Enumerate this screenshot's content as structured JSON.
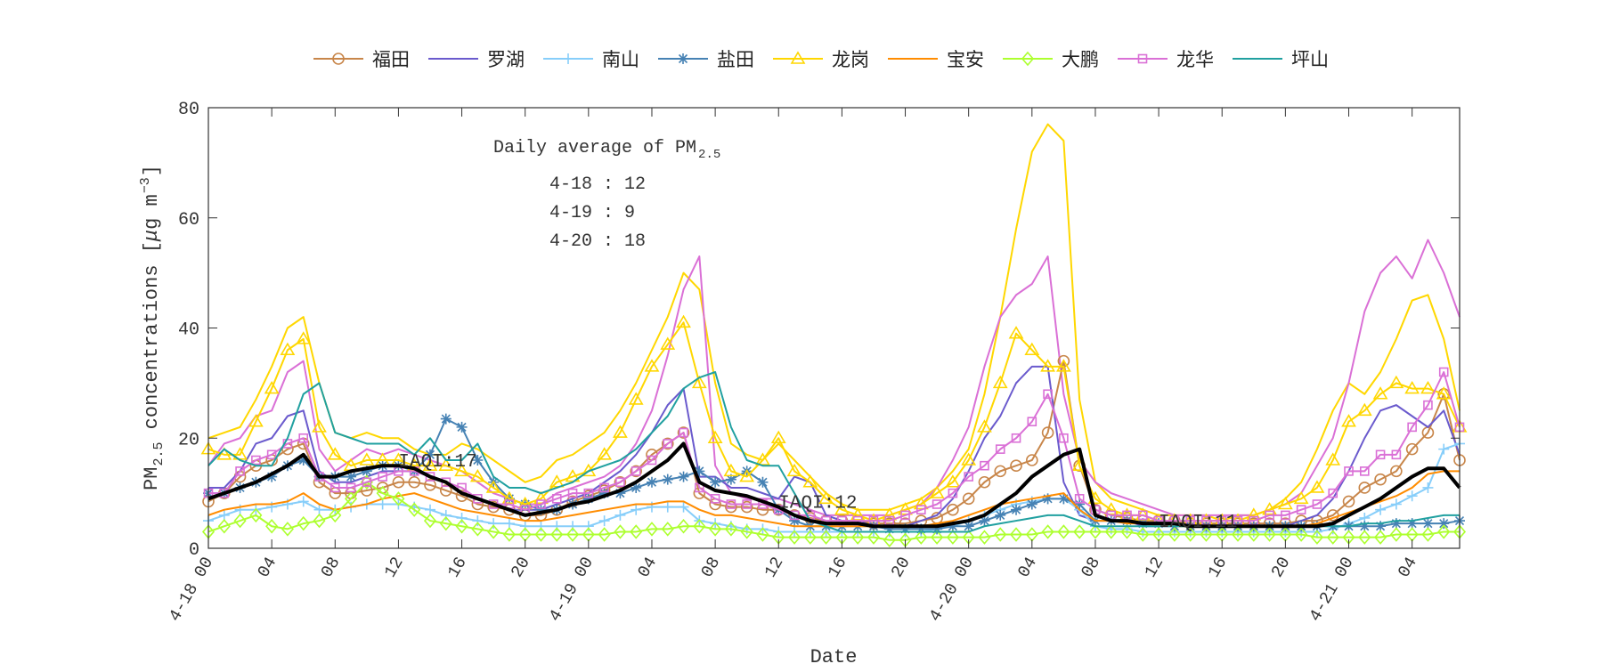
{
  "chart_data": {
    "type": "line",
    "xlabel": "Date",
    "ylabel": "PM2.5 concentrations [μg m−3]",
    "ylabel_parts": {
      "pre": "PM",
      "sub": "2.5",
      "mid": " concentrations [",
      "mu": "μ",
      "unit": "g m",
      "sup": "−3",
      "post": "]"
    },
    "ylim": [
      0,
      80
    ],
    "yticks": [
      0,
      20,
      40,
      60,
      80
    ],
    "xlim": [
      0,
      79
    ],
    "x_unit": "hours from 4-18 00",
    "xtick_hours": [
      0,
      4,
      8,
      12,
      16,
      20,
      24,
      28,
      32,
      36,
      40,
      44,
      48,
      52,
      56,
      60,
      64,
      68,
      72,
      76
    ],
    "xtick_labels": [
      "4-18 00",
      "04",
      "08",
      "12",
      "16",
      "20",
      "4-19 00",
      "04",
      "08",
      "12",
      "16",
      "20",
      "4-20 00",
      "04",
      "08",
      "12",
      "16",
      "20",
      "4-21 00",
      "04"
    ],
    "grid": false,
    "legend_placement": "top (outside, horizontal)",
    "box_title": {
      "pre": "Daily average of PM",
      "sub": "2.5"
    },
    "daily_averages": [
      "4-18 : 12",
      "4-19 : 9",
      "4-20 : 18"
    ],
    "annotations": [
      {
        "text": "IAQI:17",
        "hour": 12,
        "value": 16
      },
      {
        "text": "IAQI:12",
        "hour": 36,
        "value": 8.5
      },
      {
        "text": "IAQI:11",
        "hour": 60,
        "value": 5
      }
    ],
    "series": [
      {
        "name": "福田",
        "color": "#c8864a",
        "marker": "circle",
        "legend": true,
        "values": [
          8.5,
          10,
          13,
          15,
          16,
          18,
          19,
          12,
          10,
          10,
          10.5,
          11,
          12,
          12,
          11.5,
          10.5,
          9.5,
          8,
          7.5,
          7,
          6,
          6,
          7,
          8.5,
          9.5,
          10.5,
          12,
          14,
          17,
          19,
          21,
          10,
          8,
          7.5,
          7.5,
          7,
          7,
          6,
          5.5,
          5,
          5,
          5,
          4.5,
          4.5,
          4.5,
          5,
          5.5,
          7,
          9,
          12,
          14,
          15,
          16,
          21,
          34,
          15,
          7,
          6,
          5.5,
          5,
          5,
          5,
          4.5,
          4.5,
          4.5,
          4.5,
          4.5,
          4.5,
          4.5,
          5,
          5,
          6,
          8.5,
          11,
          12.5,
          14,
          18,
          21,
          28,
          16
        ]
      },
      {
        "name": "罗湖",
        "color": "#6a5acd",
        "marker": "none",
        "legend": true,
        "values": [
          11,
          11,
          14,
          19,
          20,
          24,
          25,
          14,
          12,
          12,
          13,
          14,
          14,
          14,
          13,
          12,
          10,
          9,
          8,
          7,
          7,
          7,
          8,
          9,
          10,
          12,
          14,
          17,
          21,
          26,
          29,
          13,
          13,
          11,
          11,
          10,
          9,
          13,
          12,
          6,
          5,
          5,
          4,
          4,
          4,
          5,
          6,
          9,
          14,
          20,
          24,
          30,
          33,
          33,
          12,
          6,
          5,
          5,
          5,
          4,
          4,
          4,
          4,
          4,
          4,
          4,
          4,
          4,
          4,
          5,
          6,
          9,
          14,
          20,
          25,
          26,
          24,
          22,
          25,
          17
        ]
      },
      {
        "name": "南山",
        "color": "#87cefa",
        "marker": "plus",
        "legend": true,
        "values": [
          5,
          6,
          7,
          7,
          7.5,
          8,
          8.5,
          7,
          7,
          7.5,
          8,
          8,
          8,
          7.5,
          7,
          6,
          5.5,
          5,
          4.5,
          4.5,
          4,
          4,
          4,
          4,
          4,
          5,
          6,
          7,
          7.5,
          7.5,
          7.5,
          5,
          4.5,
          4,
          3.5,
          3.5,
          3,
          3,
          3,
          3,
          3,
          3,
          3,
          3,
          3,
          3,
          3.5,
          4,
          5,
          6,
          7,
          8,
          8.5,
          9,
          9,
          7,
          4,
          3.5,
          3.5,
          3,
          3,
          3,
          3,
          3,
          3,
          3,
          3,
          3,
          3,
          3,
          3,
          3.5,
          4.5,
          5.5,
          7,
          8,
          9.5,
          11,
          18,
          19
        ]
      },
      {
        "name": "盐田",
        "color": "#4682b4",
        "marker": "asterisk",
        "legend": true,
        "values": [
          10,
          10,
          11,
          12,
          13,
          15,
          16,
          13,
          13,
          13,
          14,
          15,
          15,
          14,
          17,
          23.5,
          22,
          16,
          12,
          9,
          8,
          7,
          7,
          8,
          9,
          10,
          10,
          11,
          12,
          12.5,
          13,
          14,
          12,
          12.5,
          14,
          12,
          7,
          5,
          4,
          4,
          4,
          4,
          4,
          3.5,
          3.5,
          3.5,
          3.5,
          4,
          4,
          5,
          6,
          7,
          8,
          9,
          9,
          8,
          5,
          5,
          5,
          4.5,
          4.5,
          4,
          4,
          4,
          4,
          4,
          4,
          4,
          4,
          4,
          4,
          4,
          4,
          4,
          4,
          4.5,
          4.5,
          4.5,
          4.5,
          5
        ]
      },
      {
        "name": "龙岗",
        "color": "#ffd700",
        "marker": "triangle",
        "legend": true,
        "values": [
          18,
          17,
          17,
          23,
          29,
          36,
          38,
          22,
          17,
          15,
          16,
          16,
          16,
          15,
          15,
          15,
          14,
          13,
          11,
          9,
          8,
          9,
          12,
          13,
          14,
          17,
          21,
          27,
          33,
          37,
          41,
          30,
          20,
          14,
          13,
          16,
          20,
          14,
          12,
          9,
          7,
          6,
          5,
          6,
          7,
          8,
          10,
          12,
          16,
          22,
          30,
          39,
          36,
          33,
          33,
          15,
          9,
          7,
          6,
          6,
          5,
          5,
          5,
          5,
          5,
          5,
          6,
          7,
          8,
          9,
          11,
          16,
          23,
          25,
          28,
          30,
          29,
          29,
          28,
          22
        ]
      },
      {
        "name": "宝安",
        "color": "#ff8c00",
        "marker": "none",
        "legend": true,
        "values": [
          6,
          7,
          7.5,
          8,
          8,
          8.5,
          10,
          8,
          7,
          7.5,
          8,
          9,
          9.5,
          10,
          9,
          8,
          7,
          6.5,
          6,
          5.5,
          5,
          5,
          5.5,
          6,
          6.5,
          7,
          7.5,
          8,
          8,
          8.5,
          8.5,
          7,
          6,
          6,
          5.5,
          5,
          4.5,
          4,
          4,
          4,
          4,
          4,
          4,
          4,
          4,
          4,
          4.5,
          5,
          6,
          7,
          8,
          8.5,
          9,
          9.5,
          10,
          7,
          5,
          5,
          4.5,
          4.5,
          4.5,
          4,
          4,
          4,
          4,
          4,
          4,
          4,
          4,
          4,
          4.5,
          5.5,
          6.5,
          7.5,
          8.5,
          9.5,
          11,
          13.5,
          14,
          14
        ]
      },
      {
        "name": "大鹏",
        "color": "#adff2f",
        "marker": "diamond",
        "legend": true,
        "values": [
          3,
          4,
          5,
          6,
          4,
          3.5,
          4.5,
          5,
          6,
          9,
          12,
          10,
          9,
          7,
          5,
          4.5,
          4,
          3.5,
          3,
          2.5,
          2.5,
          2.5,
          2.5,
          2.5,
          2.5,
          2.5,
          3,
          3,
          3.5,
          3.5,
          4,
          4,
          3.5,
          3.5,
          3,
          2.5,
          2,
          2,
          2,
          2,
          2,
          2,
          2,
          1.5,
          1.5,
          2,
          2,
          2,
          2,
          2,
          2.5,
          2.5,
          2.5,
          3,
          3,
          3,
          3,
          3,
          3,
          2.5,
          2.5,
          2.5,
          2.5,
          2.5,
          2.5,
          2.5,
          2.5,
          2.5,
          2.5,
          2.5,
          2,
          2,
          2,
          2,
          2,
          2.5,
          2.5,
          2.5,
          3,
          3
        ]
      },
      {
        "name": "龙华",
        "color": "#da70d6",
        "marker": "square",
        "legend": true,
        "values": [
          10,
          10,
          14,
          16,
          17,
          19,
          20,
          13,
          11,
          11,
          12,
          13,
          14,
          14,
          13,
          12,
          11,
          9,
          8,
          8,
          7,
          8,
          9,
          10,
          10,
          11,
          12,
          14,
          16,
          19,
          21,
          11,
          9,
          8,
          8,
          8,
          7,
          6,
          6,
          5,
          5,
          5,
          5,
          5,
          6,
          7,
          8,
          10,
          13,
          15,
          18,
          20,
          23,
          28,
          20,
          9,
          7,
          6,
          6,
          6,
          5,
          5,
          5,
          5,
          5,
          5,
          5,
          6,
          6,
          7,
          8,
          10,
          14,
          14,
          17,
          17,
          22,
          26,
          32,
          22
        ]
      },
      {
        "name": "坪山",
        "color": "#20a0a0",
        "marker": "none",
        "legend": true,
        "values": [
          15,
          18,
          16,
          15,
          15,
          20,
          28,
          30,
          21,
          20,
          19,
          19,
          19,
          17,
          20,
          16,
          16,
          19,
          13,
          11,
          11,
          10,
          11,
          12,
          14,
          15,
          16,
          18,
          21,
          24,
          29,
          31,
          32,
          22,
          16,
          15,
          15,
          10,
          5,
          4,
          3,
          3,
          3,
          3,
          3,
          3,
          3,
          3,
          3,
          4,
          4.5,
          5,
          5.5,
          6,
          6,
          5,
          4,
          4,
          4,
          4,
          4,
          4,
          4,
          4,
          4,
          4,
          4,
          4,
          4,
          4,
          4,
          4,
          4,
          4.5,
          4.5,
          5,
          5,
          5.5,
          6,
          6
        ]
      },
      {
        "color": "#ffd700",
        "marker": "none",
        "legend": false,
        "values": [
          20,
          21,
          22,
          27,
          33,
          40,
          42,
          30,
          21,
          20,
          21,
          20,
          20,
          18,
          17,
          17,
          19,
          18,
          16,
          14,
          12,
          13,
          16,
          17,
          19,
          21,
          25,
          30,
          36,
          42,
          50,
          47,
          30,
          19,
          17,
          16,
          19,
          16,
          13,
          10,
          8,
          7,
          7,
          7,
          8,
          9,
          11,
          14,
          18,
          28,
          42,
          58,
          72,
          77,
          74,
          27,
          12,
          9,
          8,
          7,
          6,
          6,
          6,
          6,
          5,
          6,
          6,
          7,
          9,
          12,
          18,
          25,
          30,
          28,
          32,
          38,
          45,
          46,
          38,
          25
        ]
      },
      {
        "color": "#da70d6",
        "marker": "none",
        "legend": false,
        "values": [
          15,
          19,
          20,
          24,
          25,
          32,
          34,
          18,
          14,
          16,
          18,
          17,
          18,
          17,
          16,
          15,
          14,
          12,
          10,
          9,
          8,
          8,
          10,
          11,
          12,
          13,
          15,
          19,
          25,
          35,
          47,
          53,
          15,
          10,
          9,
          9,
          9,
          8,
          7,
          6,
          6,
          6,
          6,
          6,
          7,
          8,
          11,
          16,
          22,
          33,
          42,
          46,
          48,
          53,
          28,
          16,
          12,
          10,
          9,
          8,
          7,
          6,
          6,
          6,
          6,
          6,
          6,
          7,
          8,
          10,
          15,
          20,
          30,
          43,
          50,
          53,
          49,
          56,
          50,
          42
        ]
      },
      {
        "color": "#000000",
        "marker": "none",
        "legend": false,
        "bold": true,
        "values": [
          9,
          10,
          11,
          12,
          13.5,
          15,
          17,
          13,
          13,
          14,
          14.5,
          15,
          15,
          14.5,
          13,
          12,
          10,
          9,
          8,
          7,
          6,
          6.5,
          7,
          8,
          8.5,
          9.5,
          10.5,
          12,
          14,
          16,
          19,
          12,
          10.5,
          10,
          9.5,
          8.5,
          7.5,
          6,
          5,
          4.5,
          4.5,
          4.5,
          4,
          4,
          4,
          4,
          4,
          4.5,
          5,
          6,
          8,
          10,
          13,
          15,
          17,
          18,
          6,
          5,
          5,
          4.5,
          4.5,
          4.5,
          4,
          4,
          4,
          4,
          4,
          4,
          4,
          4,
          4,
          4.5,
          6,
          7.5,
          9,
          11,
          13,
          14.5,
          14.5,
          11
        ]
      }
    ]
  }
}
